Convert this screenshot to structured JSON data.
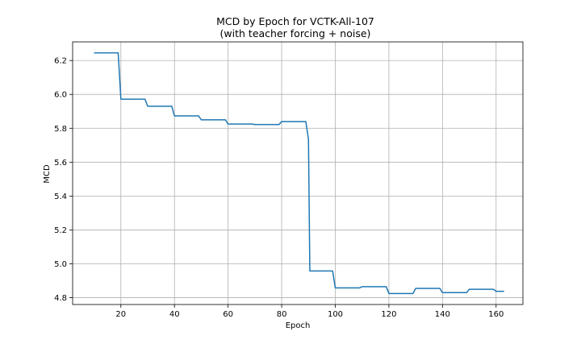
{
  "chart_data": {
    "type": "line",
    "title": "MCD by Epoch for VCTK-All-107",
    "subtitle": "(with teacher forcing + noise)",
    "xlabel": "Epoch",
    "ylabel": "MCD",
    "xlim": [
      2,
      170
    ],
    "ylim": [
      4.76,
      6.31
    ],
    "xticks": [
      20,
      40,
      60,
      80,
      100,
      120,
      140,
      160
    ],
    "yticks": [
      4.8,
      5.0,
      5.2,
      5.4,
      5.6,
      5.8,
      6.0,
      6.2
    ],
    "grid": true,
    "color": "#1f77b4",
    "series": [
      {
        "x": [
          10,
          19,
          20,
          29,
          30,
          39,
          40,
          49,
          50,
          59,
          60,
          69,
          70,
          79,
          80,
          89,
          90,
          90.5,
          99,
          100,
          109,
          110,
          119,
          120,
          129,
          130,
          139,
          140,
          149,
          150,
          159,
          160,
          163
        ],
        "y": [
          6.245,
          6.245,
          5.972,
          5.972,
          5.93,
          5.93,
          5.873,
          5.873,
          5.85,
          5.85,
          5.825,
          5.825,
          5.822,
          5.822,
          5.84,
          5.84,
          5.735,
          4.958,
          4.958,
          4.858,
          4.858,
          4.865,
          4.865,
          4.825,
          4.825,
          4.855,
          4.855,
          4.83,
          4.83,
          4.85,
          4.85,
          4.838,
          4.838
        ]
      }
    ]
  }
}
